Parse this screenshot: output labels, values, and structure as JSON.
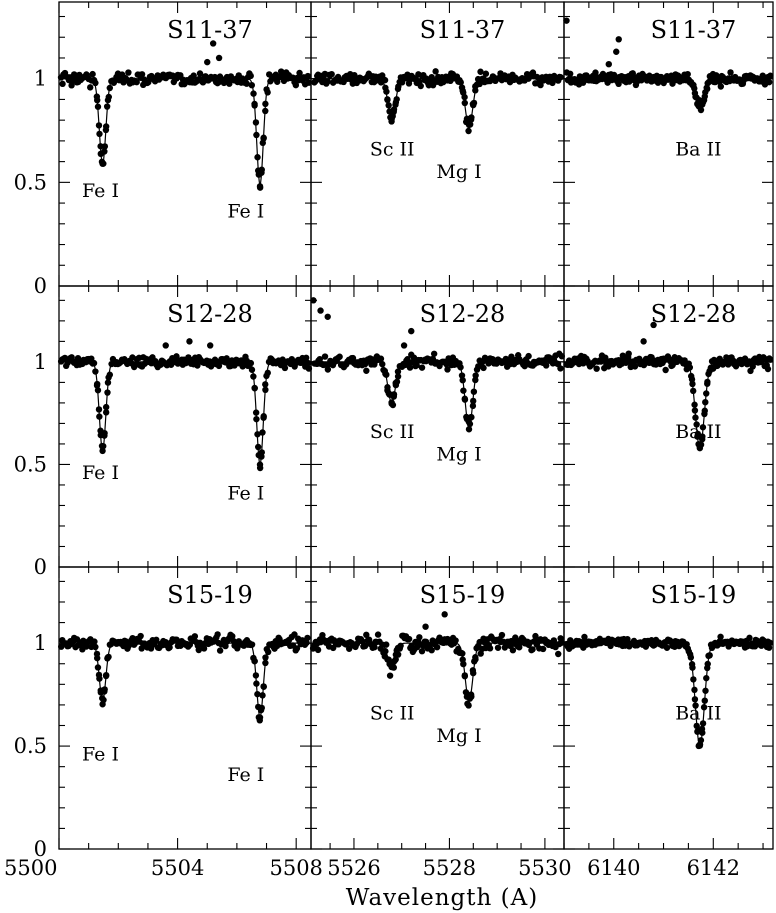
{
  "chart_data": {
    "type": "scatter",
    "xlabel": "Wavelength (A)",
    "ylim": [
      0,
      1.37
    ],
    "yticks": [
      0,
      0.5,
      1
    ],
    "ytick_labels": [
      "0",
      "0.5",
      "1"
    ],
    "columns": [
      {
        "xlim": [
          5500,
          5508.5
        ],
        "xticks": [
          5500,
          5504,
          5508
        ],
        "xtick_labels": [
          "5500",
          "5504",
          "5508"
        ],
        "lines": [
          {
            "center": 5501.47,
            "sigma": 0.11
          },
          {
            "center": 5506.78,
            "sigma": 0.11
          }
        ],
        "labels": [
          {
            "text": "Fe I",
            "x": 5501.4,
            "y": 0.43
          },
          {
            "text": "Fe I",
            "x": 5506.3,
            "y": 0.33
          }
        ]
      },
      {
        "xlim": [
          5525.1,
          5530.4
        ],
        "xticks": [
          5526,
          5528,
          5530
        ],
        "xtick_labels": [
          "5526",
          "5528",
          "5530"
        ],
        "lines": [
          {
            "center": 5526.79,
            "sigma": 0.08
          },
          {
            "center": 5528.41,
            "sigma": 0.08
          }
        ],
        "labels": [
          {
            "text": "Sc II",
            "x": 5526.8,
            "y": 0.63
          },
          {
            "text": "Mg I",
            "x": 5528.2,
            "y": 0.52
          }
        ]
      },
      {
        "xlim": [
          6139,
          6143.2
        ],
        "xticks": [
          6140,
          6142
        ],
        "xtick_labels": [
          "6140",
          "6142"
        ],
        "lines": [
          {
            "center": 6141.73,
            "sigma": 0.09
          }
        ],
        "labels": [
          {
            "text": "Ba II",
            "x": 6141.7,
            "y": 0.63
          }
        ]
      }
    ],
    "panels": [
      {
        "row": 0,
        "col": 0,
        "star": "S11-37",
        "depths": [
          0.41,
          0.51
        ],
        "noise": 0.035,
        "bumps": [
          {
            "x": 5505.2,
            "y": 1.17
          },
          {
            "x": 5505.0,
            "y": 1.08
          },
          {
            "x": 5505.4,
            "y": 1.1
          }
        ]
      },
      {
        "row": 0,
        "col": 1,
        "star": "S11-37",
        "depths": [
          0.19,
          0.23
        ],
        "noise": 0.035,
        "bumps": []
      },
      {
        "row": 0,
        "col": 2,
        "star": "S11-37",
        "depths": [
          0.14
        ],
        "noise": 0.03,
        "bumps": [
          {
            "x": 6139.05,
            "y": 1.28
          },
          {
            "x": 6140.1,
            "y": 1.19
          },
          {
            "x": 6140.05,
            "y": 1.13
          },
          {
            "x": 6139.9,
            "y": 1.07
          }
        ]
      },
      {
        "row": 1,
        "col": 0,
        "star": "S12-28",
        "depths": [
          0.43,
          0.5
        ],
        "noise": 0.03,
        "bumps": [
          {
            "x": 5503.6,
            "y": 1.08
          },
          {
            "x": 5504.4,
            "y": 1.1
          },
          {
            "x": 5505.1,
            "y": 1.08
          }
        ]
      },
      {
        "row": 1,
        "col": 1,
        "star": "S12-28",
        "depths": [
          0.2,
          0.32
        ],
        "noise": 0.035,
        "bumps": [
          {
            "x": 5525.15,
            "y": 1.3
          },
          {
            "x": 5525.3,
            "y": 1.25
          },
          {
            "x": 5525.45,
            "y": 1.22
          },
          {
            "x": 5527.2,
            "y": 1.15
          },
          {
            "x": 5527.05,
            "y": 1.08
          }
        ]
      },
      {
        "row": 1,
        "col": 2,
        "star": "S12-28",
        "depths": [
          0.42
        ],
        "noise": 0.03,
        "bumps": [
          {
            "x": 6140.8,
            "y": 1.18
          },
          {
            "x": 6140.6,
            "y": 1.1
          },
          {
            "x": 6140.3,
            "y": 1.04
          }
        ]
      },
      {
        "row": 2,
        "col": 0,
        "star": "S15-19",
        "depths": [
          0.28,
          0.36
        ],
        "noise": 0.035,
        "bumps": []
      },
      {
        "row": 2,
        "col": 1,
        "star": "S15-19",
        "depths": [
          0.12,
          0.28
        ],
        "noise": 0.045,
        "bumps": [
          {
            "x": 5527.9,
            "y": 1.14
          },
          {
            "x": 5527.5,
            "y": 1.08
          }
        ]
      },
      {
        "row": 2,
        "col": 2,
        "star": "S15-19",
        "depths": [
          0.5
        ],
        "noise": 0.025,
        "bumps": []
      }
    ]
  }
}
